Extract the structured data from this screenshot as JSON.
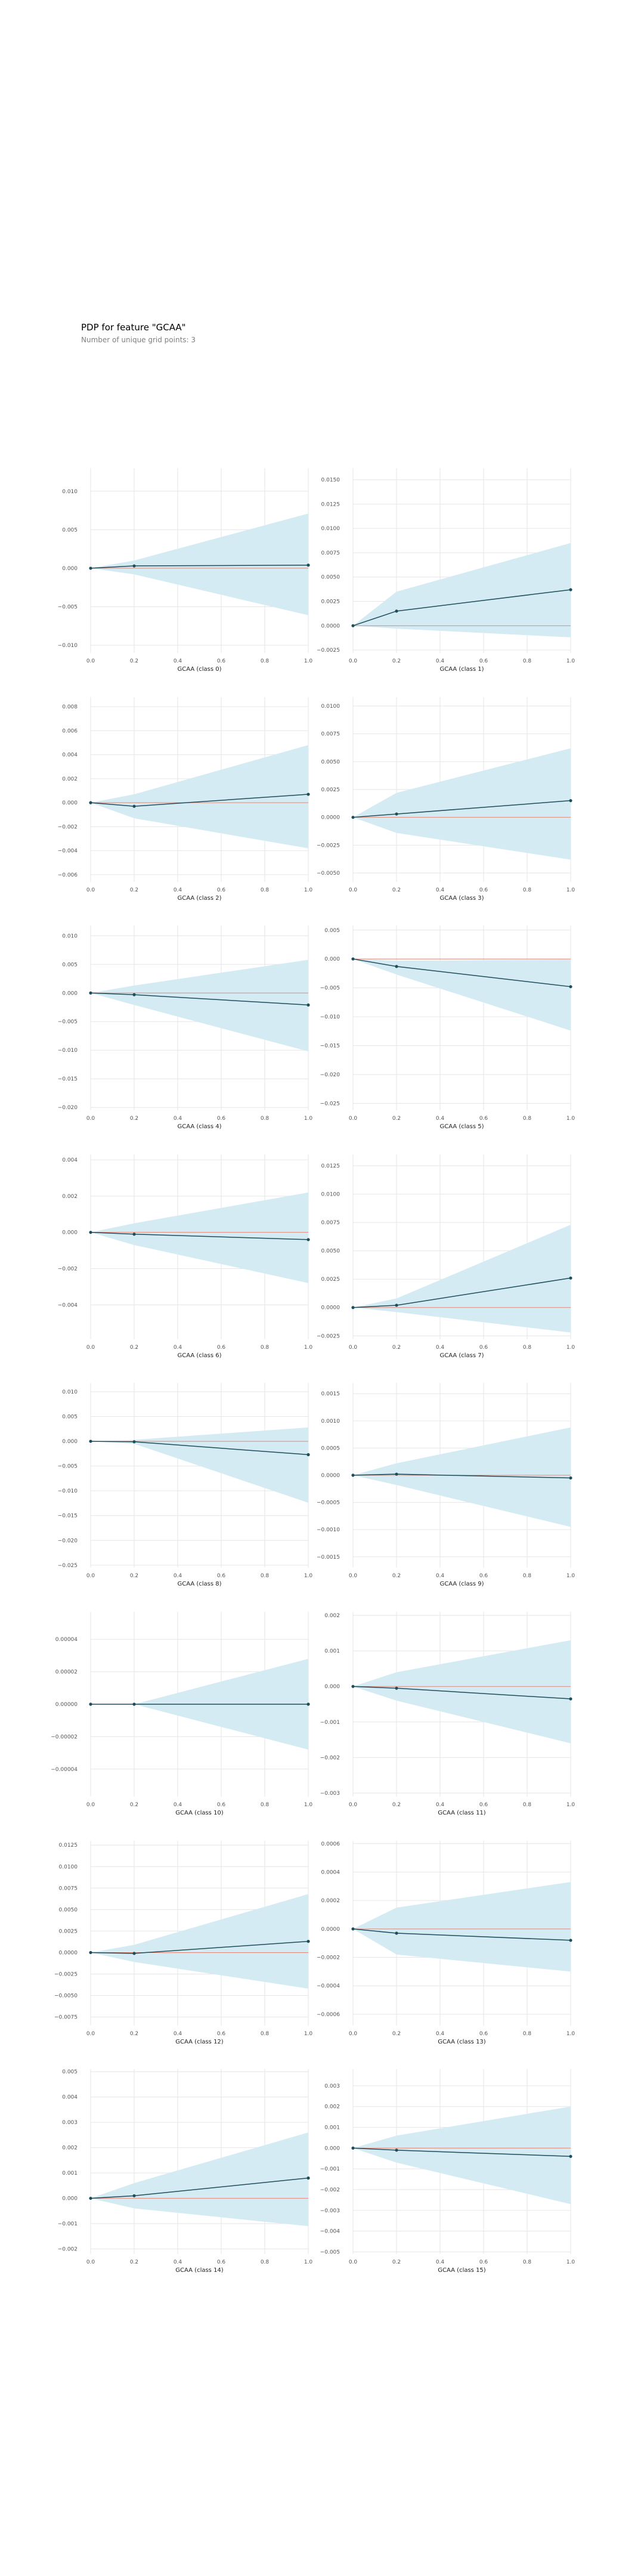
{
  "figure": {
    "title": "PDP for feature \"GCAA\"",
    "subtitle": "Number of unique grid points: 3"
  },
  "colors": {
    "band": "#d4ebf3",
    "line": "#1f4e5a",
    "zero_line": "#e0887a",
    "grid": "#e6e6e6",
    "tick": "#555555"
  },
  "chart_data": [
    {
      "type": "line",
      "title": "",
      "xlabel": "GCAA (class 0)",
      "x": [
        0,
        0.2,
        1
      ],
      "y": [
        0,
        0.0003,
        0.0004
      ],
      "band_upper": [
        0,
        0.001,
        0.0071
      ],
      "band_lower": [
        0,
        -0.0008,
        -0.0061
      ],
      "xlim": [
        0,
        1
      ],
      "ylim": [
        -0.011,
        0.013
      ],
      "xticks": [
        0,
        0.2,
        0.4,
        0.6,
        0.8,
        1
      ],
      "xtick_labels": [
        "0.0",
        "0.2",
        "0.4",
        "0.6",
        "0.8",
        "1.0"
      ],
      "yticks": [
        -0.01,
        -0.005,
        0,
        0.005,
        0.01
      ],
      "ytick_labels": [
        "−0.010",
        "−0.005",
        "0.000",
        "0.005",
        "0.010"
      ],
      "grid": true
    },
    {
      "type": "line",
      "title": "",
      "xlabel": "GCAA (class 1)",
      "x": [
        0,
        0.2,
        1
      ],
      "y": [
        0,
        0.0015,
        0.0037
      ],
      "band_upper": [
        0,
        0.0035,
        0.0085
      ],
      "band_lower": [
        0,
        -0.0003,
        -0.0012
      ],
      "xlim": [
        0,
        1
      ],
      "ylim": [
        -0.0028,
        0.0162
      ],
      "xticks": [
        0,
        0.2,
        0.4,
        0.6,
        0.8,
        1
      ],
      "xtick_labels": [
        "0.0",
        "0.2",
        "0.4",
        "0.6",
        "0.8",
        "1.0"
      ],
      "yticks": [
        -0.0025,
        0,
        0.0025,
        0.005,
        0.0075,
        0.01,
        0.0125,
        0.015
      ],
      "ytick_labels": [
        "−0.0025",
        "0.0000",
        "0.0025",
        "0.0050",
        "0.0075",
        "0.0100",
        "0.0125",
        "0.0150"
      ],
      "grid": true
    },
    {
      "type": "line",
      "title": "",
      "xlabel": "GCAA (class 2)",
      "x": [
        0,
        0.2,
        1
      ],
      "y": [
        0,
        -0.0003,
        0.0007
      ],
      "band_upper": [
        0,
        0.0007,
        0.0048
      ],
      "band_lower": [
        0,
        -0.0013,
        -0.0038
      ],
      "xlim": [
        0,
        1
      ],
      "ylim": [
        -0.0066,
        0.0088
      ],
      "xticks": [
        0,
        0.2,
        0.4,
        0.6,
        0.8,
        1
      ],
      "xtick_labels": [
        "0.0",
        "0.2",
        "0.4",
        "0.6",
        "0.8",
        "1.0"
      ],
      "yticks": [
        -0.006,
        -0.004,
        -0.002,
        0,
        0.002,
        0.004,
        0.006,
        0.008
      ],
      "ytick_labels": [
        "−0.006",
        "−0.004",
        "−0.002",
        "0.000",
        "0.002",
        "0.004",
        "0.006",
        "0.008"
      ],
      "grid": true
    },
    {
      "type": "line",
      "title": "",
      "xlabel": "GCAA (class 3)",
      "x": [
        0,
        0.2,
        1
      ],
      "y": [
        0,
        0.0003,
        0.0015
      ],
      "band_upper": [
        0,
        0.0022,
        0.0062
      ],
      "band_lower": [
        0,
        -0.0014,
        -0.0038
      ],
      "xlim": [
        0,
        1
      ],
      "ylim": [
        -0.0058,
        0.0108
      ],
      "xticks": [
        0,
        0.2,
        0.4,
        0.6,
        0.8,
        1
      ],
      "xtick_labels": [
        "0.0",
        "0.2",
        "0.4",
        "0.6",
        "0.8",
        "1.0"
      ],
      "yticks": [
        -0.005,
        -0.0025,
        0,
        0.0025,
        0.005,
        0.0075,
        0.01
      ],
      "ytick_labels": [
        "−0.0050",
        "−0.0025",
        "0.0000",
        "0.0025",
        "0.0050",
        "0.0075",
        "0.0100"
      ],
      "grid": true
    },
    {
      "type": "line",
      "title": "",
      "xlabel": "GCAA (class 4)",
      "x": [
        0,
        0.2,
        1
      ],
      "y": [
        0,
        -0.0003,
        -0.0021
      ],
      "band_upper": [
        0,
        0.0013,
        0.0058
      ],
      "band_lower": [
        0,
        -0.0021,
        -0.0102
      ],
      "xlim": [
        0,
        1
      ],
      "ylim": [
        -0.0205,
        0.0118
      ],
      "xticks": [
        0,
        0.2,
        0.4,
        0.6,
        0.8,
        1
      ],
      "xtick_labels": [
        "0.0",
        "0.2",
        "0.4",
        "0.6",
        "0.8",
        "1.0"
      ],
      "yticks": [
        -0.02,
        -0.015,
        -0.01,
        -0.005,
        0,
        0.005,
        0.01
      ],
      "ytick_labels": [
        "−0.020",
        "−0.015",
        "−0.010",
        "−0.005",
        "0.000",
        "0.005",
        "0.010"
      ],
      "grid": true
    },
    {
      "type": "line",
      "title": "",
      "xlabel": "GCAA (class 5)",
      "x": [
        0,
        0.2,
        1
      ],
      "y": [
        0,
        -0.0013,
        -0.0048
      ],
      "band_upper": [
        0,
        -0.0003,
        -0.0001
      ],
      "band_lower": [
        0,
        -0.0027,
        -0.0124
      ],
      "xlim": [
        0,
        1
      ],
      "ylim": [
        -0.0262,
        0.0058
      ],
      "xticks": [
        0,
        0.2,
        0.4,
        0.6,
        0.8,
        1
      ],
      "xtick_labels": [
        "0.0",
        "0.2",
        "0.4",
        "0.6",
        "0.8",
        "1.0"
      ],
      "yticks": [
        -0.025,
        -0.02,
        -0.015,
        -0.01,
        -0.005,
        0,
        0.005
      ],
      "ytick_labels": [
        "−0.025",
        "−0.020",
        "−0.015",
        "−0.010",
        "−0.005",
        "0.000",
        "0.005"
      ],
      "grid": true
    },
    {
      "type": "line",
      "title": "",
      "xlabel": "GCAA (class 6)",
      "x": [
        0,
        0.2,
        1
      ],
      "y": [
        0,
        -0.0001,
        -0.0004
      ],
      "band_upper": [
        0,
        0.0005,
        0.0022
      ],
      "band_lower": [
        0,
        -0.0007,
        -0.0028
      ],
      "xlim": [
        0,
        1
      ],
      "ylim": [
        -0.0059,
        0.0043
      ],
      "xticks": [
        0,
        0.2,
        0.4,
        0.6,
        0.8,
        1
      ],
      "xtick_labels": [
        "0.0",
        "0.2",
        "0.4",
        "0.6",
        "0.8",
        "1.0"
      ],
      "yticks": [
        -0.004,
        -0.002,
        0,
        0.002,
        0.004
      ],
      "ytick_labels": [
        "−0.004",
        "−0.002",
        "0.000",
        "0.002",
        "0.004"
      ],
      "grid": true
    },
    {
      "type": "line",
      "title": "",
      "xlabel": "GCAA (class 7)",
      "x": [
        0,
        0.2,
        1
      ],
      "y": [
        0,
        0.0002,
        0.0026
      ],
      "band_upper": [
        0,
        0.0008,
        0.0073
      ],
      "band_lower": [
        0,
        -0.0004,
        -0.0022
      ],
      "xlim": [
        0,
        1
      ],
      "ylim": [
        -0.0028,
        0.0135
      ],
      "xticks": [
        0,
        0.2,
        0.4,
        0.6,
        0.8,
        1
      ],
      "xtick_labels": [
        "0.0",
        "0.2",
        "0.4",
        "0.6",
        "0.8",
        "1.0"
      ],
      "yticks": [
        -0.0025,
        0,
        0.0025,
        0.005,
        0.0075,
        0.01,
        0.0125
      ],
      "ytick_labels": [
        "−0.0025",
        "0.0000",
        "0.0025",
        "0.0050",
        "0.0075",
        "0.0100",
        "0.0125"
      ],
      "grid": true
    },
    {
      "type": "line",
      "title": "",
      "xlabel": "GCAA (class 8)",
      "x": [
        0,
        0.2,
        1
      ],
      "y": [
        0,
        -0.0001,
        -0.0027
      ],
      "band_upper": [
        0,
        0.0003,
        0.0028
      ],
      "band_lower": [
        0,
        -0.0005,
        -0.0124
      ],
      "xlim": [
        0,
        1
      ],
      "ylim": [
        -0.0255,
        0.0118
      ],
      "xticks": [
        0,
        0.2,
        0.4,
        0.6,
        0.8,
        1
      ],
      "xtick_labels": [
        "0.0",
        "0.2",
        "0.4",
        "0.6",
        "0.8",
        "1.0"
      ],
      "yticks": [
        -0.025,
        -0.02,
        -0.015,
        -0.01,
        -0.005,
        0,
        0.005,
        0.01
      ],
      "ytick_labels": [
        "−0.025",
        "−0.020",
        "−0.015",
        "−0.010",
        "−0.005",
        "0.000",
        "0.005",
        "0.010"
      ],
      "grid": true
    },
    {
      "type": "line",
      "title": "",
      "xlabel": "GCAA (class 9)",
      "x": [
        0,
        0.2,
        1
      ],
      "y": [
        0,
        2e-05,
        -5e-05
      ],
      "band_upper": [
        0,
        0.00022,
        0.00088
      ],
      "band_lower": [
        0,
        -0.00018,
        -0.00095
      ],
      "xlim": [
        0,
        1
      ],
      "ylim": [
        -0.0017,
        0.0017
      ],
      "xticks": [
        0,
        0.2,
        0.4,
        0.6,
        0.8,
        1
      ],
      "xtick_labels": [
        "0.0",
        "0.2",
        "0.4",
        "0.6",
        "0.8",
        "1.0"
      ],
      "yticks": [
        -0.0015,
        -0.001,
        -0.0005,
        0,
        0.0005,
        0.001,
        0.0015
      ],
      "ytick_labels": [
        "−0.0015",
        "−0.0010",
        "−0.0005",
        "0.0000",
        "0.0005",
        "0.0010",
        "0.0015"
      ],
      "grid": true
    },
    {
      "type": "line",
      "title": "",
      "xlabel": "GCAA (class 10)",
      "x": [
        0,
        0.2,
        1
      ],
      "y": [
        0,
        0,
        0
      ],
      "band_upper": [
        0,
        0,
        2.8e-05
      ],
      "band_lower": [
        0,
        0,
        -2.8e-05
      ],
      "xlim": [
        0,
        1
      ],
      "ylim": [
        -5.7e-05,
        5.7e-05
      ],
      "xticks": [
        0,
        0.2,
        0.4,
        0.6,
        0.8,
        1
      ],
      "xtick_labels": [
        "0.0",
        "0.2",
        "0.4",
        "0.6",
        "0.8",
        "1.0"
      ],
      "yticks": [
        -4e-05,
        -2e-05,
        0,
        2e-05,
        4e-05
      ],
      "ytick_labels": [
        "−0.00004",
        "−0.00002",
        "0.00000",
        "0.00002",
        "0.00004"
      ],
      "grid": true
    },
    {
      "type": "line",
      "title": "",
      "xlabel": "GCAA (class 11)",
      "x": [
        0,
        0.2,
        1
      ],
      "y": [
        0,
        -5e-05,
        -0.00035
      ],
      "band_upper": [
        0,
        0.0004,
        0.0013
      ],
      "band_lower": [
        0,
        -0.0004,
        -0.0016
      ],
      "xlim": [
        0,
        1
      ],
      "ylim": [
        -0.0031,
        0.0021
      ],
      "xticks": [
        0,
        0.2,
        0.4,
        0.6,
        0.8,
        1
      ],
      "xtick_labels": [
        "0.0",
        "0.2",
        "0.4",
        "0.6",
        "0.8",
        "1.0"
      ],
      "yticks": [
        -0.003,
        -0.002,
        -0.001,
        0,
        0.001,
        0.002
      ],
      "ytick_labels": [
        "−0.003",
        "−0.002",
        "−0.001",
        "0.000",
        "0.001",
        "0.002"
      ],
      "grid": true
    },
    {
      "type": "line",
      "title": "",
      "xlabel": "GCAA (class 12)",
      "x": [
        0,
        0.2,
        1
      ],
      "y": [
        0,
        -0.0001,
        0.0013
      ],
      "band_upper": [
        0,
        0.0009,
        0.0068
      ],
      "band_lower": [
        0,
        -0.0011,
        -0.0042
      ],
      "xlim": [
        0,
        1
      ],
      "ylim": [
        -0.0085,
        0.013
      ],
      "xticks": [
        0,
        0.2,
        0.4,
        0.6,
        0.8,
        1
      ],
      "xtick_labels": [
        "0.0",
        "0.2",
        "0.4",
        "0.6",
        "0.8",
        "1.0"
      ],
      "yticks": [
        -0.0075,
        -0.005,
        -0.0025,
        0,
        0.0025,
        0.005,
        0.0075,
        0.01,
        0.0125
      ],
      "ytick_labels": [
        "−0.0075",
        "−0.0050",
        "−0.0025",
        "0.0000",
        "0.0025",
        "0.0050",
        "0.0075",
        "0.0100",
        "0.0125"
      ],
      "grid": true
    },
    {
      "type": "line",
      "title": "",
      "xlabel": "GCAA (class 13)",
      "x": [
        0,
        0.2,
        1
      ],
      "y": [
        0,
        -3e-05,
        -8e-05
      ],
      "band_upper": [
        0,
        0.00015,
        0.00033
      ],
      "band_lower": [
        0,
        -0.00018,
        -0.0003
      ],
      "xlim": [
        0,
        1
      ],
      "ylim": [
        -0.00068,
        0.00062
      ],
      "xticks": [
        0,
        0.2,
        0.4,
        0.6,
        0.8,
        1
      ],
      "xtick_labels": [
        "0.0",
        "0.2",
        "0.4",
        "0.6",
        "0.8",
        "1.0"
      ],
      "yticks": [
        -0.0006,
        -0.0004,
        -0.0002,
        0,
        0.0002,
        0.0004,
        0.0006
      ],
      "ytick_labels": [
        "−0.0006",
        "−0.0004",
        "−0.0002",
        "0.0000",
        "0.0002",
        "0.0004",
        "0.0006"
      ],
      "grid": true
    },
    {
      "type": "line",
      "title": "",
      "xlabel": "GCAA (class 14)",
      "x": [
        0,
        0.2,
        1
      ],
      "y": [
        0,
        0.0001,
        0.0008
      ],
      "band_upper": [
        0,
        0.0006,
        0.0026
      ],
      "band_lower": [
        0,
        -0.0004,
        -0.0011
      ],
      "xlim": [
        0,
        1
      ],
      "ylim": [
        -0.0022,
        0.0051
      ],
      "xticks": [
        0,
        0.2,
        0.4,
        0.6,
        0.8,
        1
      ],
      "xtick_labels": [
        "0.0",
        "0.2",
        "0.4",
        "0.6",
        "0.8",
        "1.0"
      ],
      "yticks": [
        -0.002,
        -0.001,
        0,
        0.001,
        0.002,
        0.003,
        0.004,
        0.005
      ],
      "ytick_labels": [
        "−0.002",
        "−0.001",
        "0.000",
        "0.001",
        "0.002",
        "0.003",
        "0.004",
        "0.005"
      ],
      "grid": true
    },
    {
      "type": "line",
      "title": "",
      "xlabel": "GCAA (class 15)",
      "x": [
        0,
        0.2,
        1
      ],
      "y": [
        0,
        -0.0001,
        -0.0004
      ],
      "band_upper": [
        0,
        0.0006,
        0.002
      ],
      "band_lower": [
        0,
        -0.0007,
        -0.0027
      ],
      "xlim": [
        0,
        1
      ],
      "ylim": [
        -0.0051,
        0.0038
      ],
      "xticks": [
        0,
        0.2,
        0.4,
        0.6,
        0.8,
        1
      ],
      "xtick_labels": [
        "0.0",
        "0.2",
        "0.4",
        "0.6",
        "0.8",
        "1.0"
      ],
      "yticks": [
        -0.005,
        -0.004,
        -0.003,
        -0.002,
        -0.001,
        0,
        0.001,
        0.002,
        0.003
      ],
      "ytick_labels": [
        "−0.005",
        "−0.004",
        "−0.003",
        "−0.002",
        "−0.001",
        "0.000",
        "0.001",
        "0.002",
        "0.003"
      ],
      "grid": true
    }
  ]
}
